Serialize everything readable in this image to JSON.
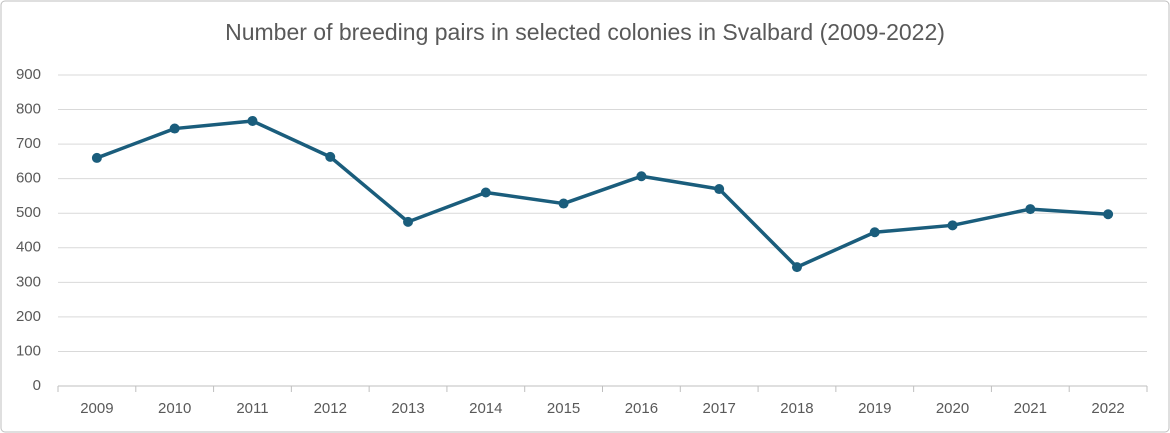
{
  "chart_data": {
    "type": "line",
    "title": "Number of breeding pairs in selected colonies in Svalbard (2009-2022)",
    "categories": [
      "2009",
      "2010",
      "2011",
      "2012",
      "2013",
      "2014",
      "2015",
      "2016",
      "2017",
      "2018",
      "2019",
      "2020",
      "2021",
      "2022"
    ],
    "series": [
      {
        "name": "Breeding pairs",
        "color": "#1a5d7c",
        "values": [
          660,
          745,
          767,
          663,
          475,
          560,
          528,
          607,
          570,
          344,
          445,
          465,
          512,
          497
        ]
      }
    ],
    "ylim": [
      0,
      900
    ],
    "yticks": [
      0,
      100,
      200,
      300,
      400,
      500,
      600,
      700,
      800,
      900
    ],
    "grid": true
  }
}
